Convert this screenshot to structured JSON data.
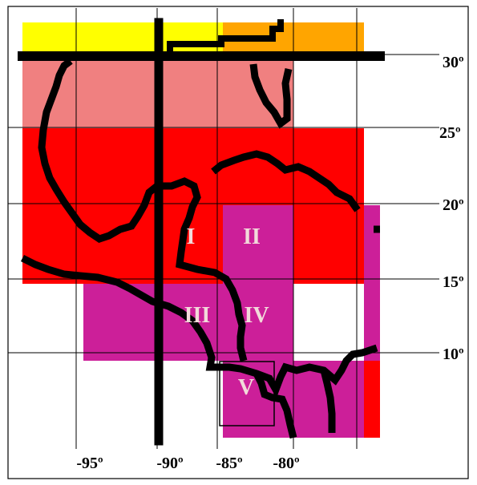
{
  "colors": {
    "yellow_band": "#ffff00",
    "orange_band": "#ffa500",
    "salmon_band": "#f08080",
    "red_band": "#ff0000",
    "magenta_band": "#cc1f99",
    "outline": "#000000",
    "grid": "#000000",
    "zone_label": "#f2dada"
  },
  "latitude_labels": [
    "30º",
    "25º",
    "20º",
    "15º",
    "10º"
  ],
  "longitude_labels": [
    "-95º",
    "-90º",
    "-85º",
    "-80º"
  ],
  "zone_labels": [
    "I",
    "II",
    "III",
    "IV",
    "V"
  ]
}
